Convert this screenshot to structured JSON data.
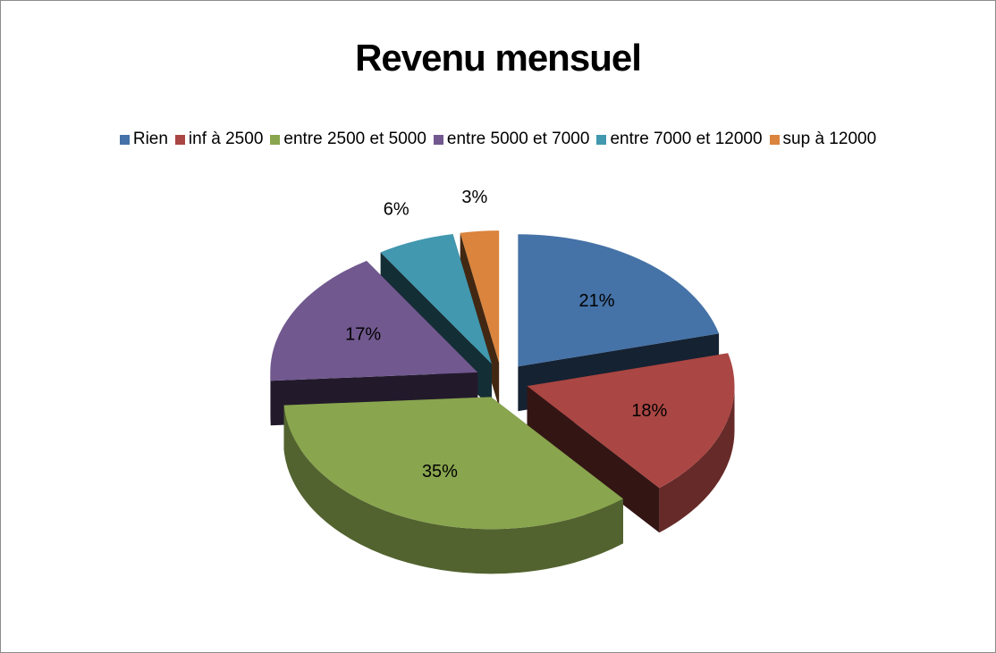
{
  "chart_data": {
    "type": "pie",
    "title": "Revenu mensuel",
    "categories": [
      "Rien",
      "inf à 2500",
      "entre 2500 et 5000",
      "entre 5000 et 7000",
      "entre 7000 et 12000",
      "sup à 12000"
    ],
    "values": [
      21,
      18,
      35,
      17,
      6,
      3
    ],
    "value_labels": [
      "21%",
      "18%",
      "35%",
      "17%",
      "6%",
      "3%"
    ],
    "colors": [
      "#4572a7",
      "#aa4643",
      "#89a54e",
      "#71588f",
      "#4198af",
      "#db843d"
    ],
    "legend": "top"
  }
}
